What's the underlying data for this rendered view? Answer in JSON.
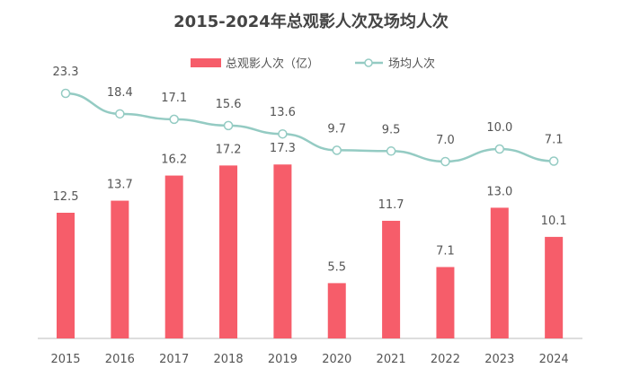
{
  "chart_data": {
    "type": "bar+line",
    "title": "2015-2024年总观影人次及场均人次",
    "categories": [
      "2015",
      "2016",
      "2017",
      "2018",
      "2019",
      "2020",
      "2021",
      "2022",
      "2023",
      "2024"
    ],
    "series": [
      {
        "name": "总观影人次（亿）",
        "type": "bar",
        "color": "#f65d6a",
        "values": [
          12.5,
          13.7,
          16.2,
          17.2,
          17.3,
          5.5,
          11.7,
          7.1,
          13.0,
          10.1
        ]
      },
      {
        "name": "场均人次",
        "type": "line",
        "color": "#94cbc3",
        "values": [
          23.3,
          18.4,
          17.1,
          15.6,
          13.6,
          9.7,
          9.5,
          7.0,
          10.0,
          7.1
        ]
      }
    ],
    "legend_position": "top-center",
    "grid": false
  }
}
